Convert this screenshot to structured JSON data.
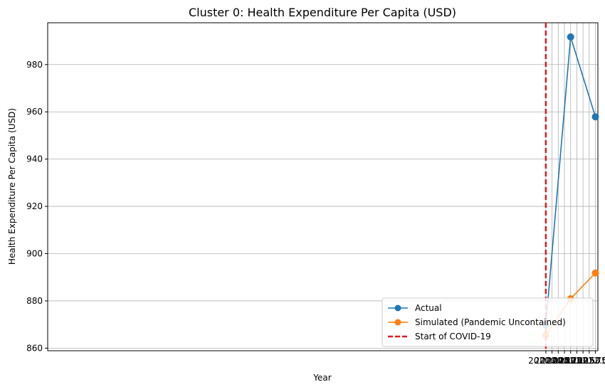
{
  "chart_data": {
    "type": "line",
    "title": "Cluster 0: Health Expenditure Per Capita (USD)",
    "xlabel": "Year",
    "ylabel": "Health Expenditure Per Capita (USD)",
    "xlim": [
      1999.9,
      2022.1
    ],
    "ylim": [
      858.9,
      997.7
    ],
    "x_ticks": [
      2020.0,
      2020.25,
      2020.5,
      2020.75,
      2021.0,
      2021.25,
      2021.5,
      2021.75,
      2022.0
    ],
    "x_tick_labels": [
      "2020.00",
      "2020.25",
      "2020.50",
      "2020.75",
      "2021.00",
      "2021.25",
      "2021.50",
      "2021.75",
      "2022.00"
    ],
    "y_ticks": [
      860,
      880,
      900,
      920,
      940,
      960,
      980
    ],
    "y_tick_labels": [
      "860",
      "880",
      "900",
      "920",
      "940",
      "960",
      "980"
    ],
    "grid": true,
    "legend_position": "bottom-right",
    "x": [
      2020,
      2021,
      2022
    ],
    "series": [
      {
        "name": "Actual",
        "values": [
          869.9,
          991.7,
          957.9
        ],
        "color": "#1f77b4",
        "marker": "circle"
      },
      {
        "name": "Simulated (Pandemic Uncontained)",
        "values": [
          865.5,
          880.9,
          891.8
        ],
        "color": "#ff7f0e",
        "marker": "circle"
      }
    ],
    "vlines": [
      {
        "name": "Start of COVID-19",
        "x": 2020,
        "color": "#e31a1c",
        "style": "dashed"
      }
    ]
  }
}
